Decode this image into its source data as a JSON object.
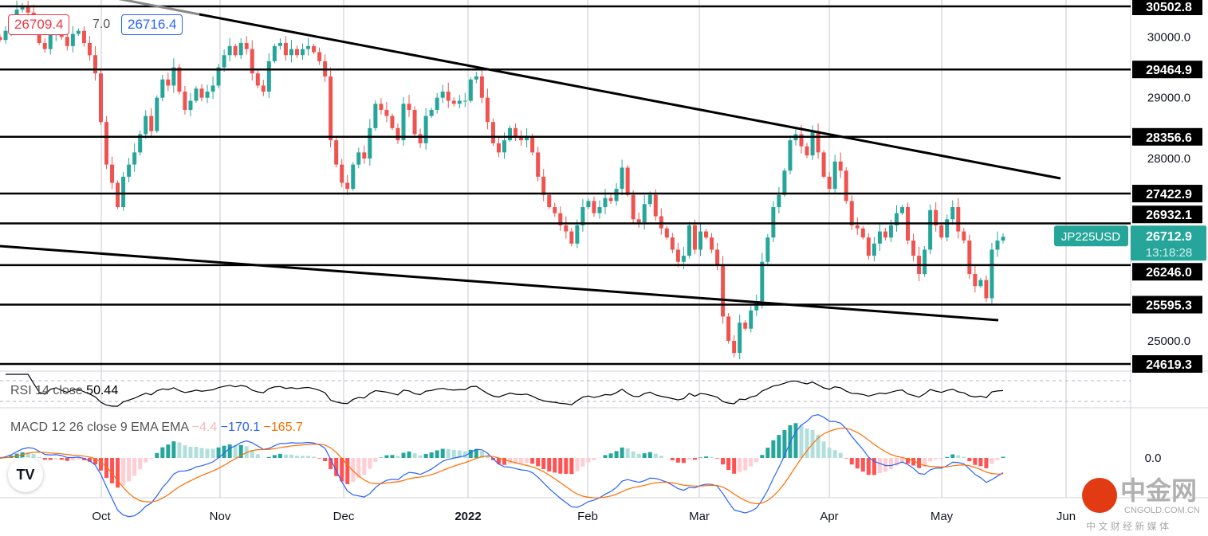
{
  "chart_data": {
    "type": "candlestick",
    "symbol": "JP225USD",
    "price_axis": {
      "min": 24619.3,
      "max": 30502.8,
      "ticks": [
        30000.0,
        29000.0,
        28000.0,
        25000.0
      ]
    },
    "time_axis": {
      "labels": [
        "Oct",
        "Nov",
        "Dec",
        "2022",
        "Feb",
        "Mar",
        "Apr",
        "May",
        "Jun"
      ]
    },
    "horizontal_levels": [
      30502.8,
      29464.9,
      28356.6,
      27422.9,
      26932.1,
      26246.0,
      25595.3,
      24619.3
    ],
    "closes": [
      29950,
      30100,
      30250,
      30450,
      30500,
      30400,
      30200,
      29900,
      29800,
      30050,
      30150,
      30000,
      29850,
      30050,
      30100,
      29900,
      29700,
      29400,
      28600,
      27900,
      27600,
      27200,
      27700,
      27900,
      28100,
      28400,
      28700,
      28450,
      29000,
      29300,
      29200,
      29500,
      29100,
      28800,
      28950,
      29150,
      29000,
      29100,
      29200,
      29500,
      29700,
      29850,
      29700,
      29900,
      29800,
      29400,
      29200,
      29100,
      29600,
      29850,
      29900,
      29700,
      29800,
      29700,
      29800,
      29850,
      29750,
      29600,
      29350,
      28300,
      27900,
      27600,
      27500,
      27900,
      28100,
      28000,
      28500,
      28900,
      28800,
      28700,
      28500,
      28300,
      28900,
      28800,
      28400,
      28250,
      28700,
      28800,
      29000,
      29100,
      28950,
      28900,
      28950,
      28950,
      29300,
      29350,
      29000,
      28600,
      28250,
      28100,
      28300,
      28500,
      28350,
      28300,
      28350,
      28100,
      27700,
      27400,
      27200,
      27100,
      26900,
      26800,
      26600,
      26900,
      27200,
      27300,
      27100,
      27200,
      27350,
      27300,
      27500,
      27850,
      27400,
      27000,
      26950,
      27250,
      27400,
      27050,
      26850,
      26700,
      26500,
      26300,
      26400,
      26900,
      26500,
      26800,
      26700,
      26500,
      26250,
      25400,
      25000,
      24800,
      25300,
      25200,
      25500,
      25650,
      26300,
      26700,
      27200,
      27400,
      27800,
      28300,
      28400,
      28200,
      28050,
      28450,
      28100,
      27700,
      27500,
      27950,
      27800,
      27300,
      26900,
      26850,
      26700,
      26400,
      26600,
      26800,
      26700,
      26900,
      27100,
      27200,
      26650,
      26400,
      26100,
      26500,
      27150,
      26900,
      26700,
      27000,
      27200,
      26800,
      26650,
      26100,
      25900,
      26000,
      25700,
      26500,
      26650,
      26712.9
    ],
    "last_price": "26712.9",
    "countdown": "13:18:28",
    "bid": "26709.4",
    "spread": "7.0",
    "ask": "26716.4",
    "rsi": {
      "label": "RSI 14 close",
      "value": "50.44"
    },
    "macd": {
      "label": "MACD 12 26 close 9 EMA EMA",
      "hist": "−4.4",
      "macd": "−170.1",
      "signal": "−165.7",
      "zero_label": "0.0"
    },
    "colors": {
      "up": "#26a69a",
      "down": "#ef5350",
      "macd": "#2962ff",
      "signal": "#ff6d00"
    }
  },
  "watermark": {
    "brand": "中金网",
    "site": "CNGOLD.COM.CN",
    "tagline": "中 文 财 经 新 媒 体"
  },
  "logo": "TV"
}
